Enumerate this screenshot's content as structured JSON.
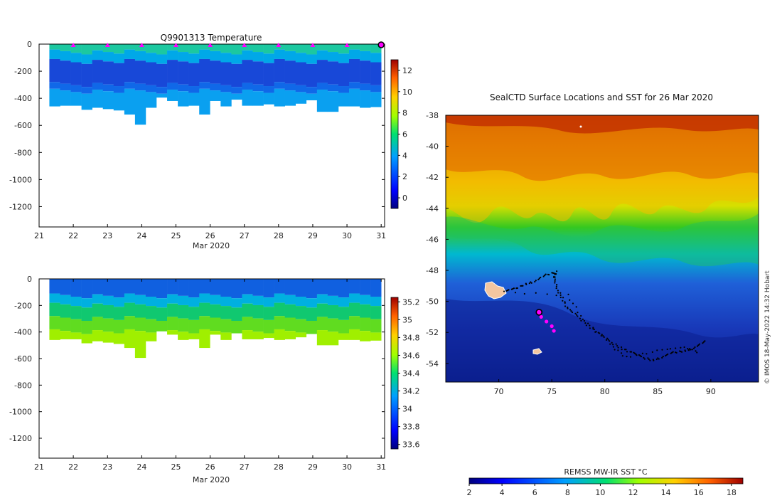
{
  "chart_data": [
    {
      "type": "heatmap",
      "title": "Q9901313  Temperature",
      "xlabel": "Mar 2020",
      "ylabel": "",
      "x_ticks": [
        "21",
        "22",
        "23",
        "24",
        "25",
        "26",
        "27",
        "28",
        "29",
        "30",
        "31"
      ],
      "y_ticks": [
        "0",
        "-200",
        "-400",
        "-600",
        "-800",
        "-1000",
        "-1200"
      ],
      "xlim": [
        21,
        31.1
      ],
      "ylim": [
        -1350,
        0
      ],
      "profile_start": 21.3,
      "profile_end": 31.0,
      "profile_depths": [
        460,
        455,
        455,
        485,
        470,
        480,
        490,
        520,
        595,
        470,
        395,
        420,
        460,
        455,
        520,
        420,
        460,
        410,
        455,
        455,
        445,
        460,
        455,
        440,
        415,
        500,
        500,
        460,
        460,
        470,
        465
      ],
      "surface_markers_x": [
        22,
        23,
        24,
        25,
        26,
        27,
        28,
        29,
        30
      ],
      "current_marker_x": 31.0,
      "colorbar": {
        "ticks": [
          "12",
          "10",
          "8",
          "6",
          "4",
          "2",
          "0"
        ],
        "min": -1,
        "max": 13
      }
    },
    {
      "type": "heatmap",
      "title": "",
      "xlabel": "Mar 2020",
      "ylabel": "",
      "x_ticks": [
        "21",
        "22",
        "23",
        "24",
        "25",
        "26",
        "27",
        "28",
        "29",
        "30",
        "31"
      ],
      "y_ticks": [
        "0",
        "-200",
        "-400",
        "-600",
        "-800",
        "-1000",
        "-1200"
      ],
      "xlim": [
        21,
        31.1
      ],
      "ylim": [
        -1350,
        0
      ],
      "colorbar": {
        "ticks": [
          "35.2",
          "35",
          "34.8",
          "34.6",
          "34.4",
          "34.2",
          "34",
          "33.8",
          "33.6"
        ],
        "min": 33.55,
        "max": 35.25
      }
    },
    {
      "type": "heatmap",
      "title": "SealCTD Surface Locations and SST for 26 Mar 2020",
      "xlabel": "",
      "ylabel": "",
      "x_ticks": [
        "70",
        "75",
        "80",
        "85",
        "90"
      ],
      "y_ticks": [
        "-38",
        "-40",
        "-42",
        "-44",
        "-46",
        "-48",
        "-50",
        "-52",
        "-54"
      ],
      "xlim": [
        65,
        94.5
      ],
      "ylim": [
        -55.2,
        -38
      ],
      "track_points": [
        [
          89.5,
          -52.6
        ],
        [
          88.5,
          -53.0
        ],
        [
          87.5,
          -53.2
        ],
        [
          86.5,
          -53.3
        ],
        [
          85.5,
          -53.6
        ],
        [
          84.5,
          -53.8
        ],
        [
          83.5,
          -53.6
        ],
        [
          82.5,
          -53.3
        ],
        [
          81.5,
          -53.0
        ],
        [
          80.5,
          -52.6
        ],
        [
          79.5,
          -52.1
        ],
        [
          78.5,
          -51.6
        ],
        [
          77.5,
          -51.0
        ],
        [
          76.5,
          -50.5
        ],
        [
          76.0,
          -49.8
        ],
        [
          75.5,
          -49.2
        ],
        [
          75.2,
          -48.5
        ],
        [
          75.4,
          -48.1
        ],
        [
          74.5,
          -48.3
        ],
        [
          73.5,
          -48.7
        ],
        [
          72.5,
          -48.9
        ],
        [
          71.5,
          -49.2
        ],
        [
          70.5,
          -49.4
        ],
        [
          76.5,
          -49.6
        ],
        [
          78.0,
          -51.2
        ],
        [
          80.5,
          -52.8
        ],
        [
          82.0,
          -53.6
        ],
        [
          85.0,
          -53.2
        ],
        [
          87.5,
          -53.0
        ],
        [
          89.0,
          -53.3
        ]
      ],
      "recent_points": [
        [
          74.0,
          -51.0
        ],
        [
          74.5,
          -51.3
        ],
        [
          75.0,
          -51.6
        ],
        [
          75.2,
          -51.9
        ]
      ],
      "current_point": [
        73.8,
        -50.7
      ],
      "colorbar": {
        "label": "REMSS MW-IR SST °C",
        "ticks": [
          "2",
          "4",
          "6",
          "8",
          "10",
          "12",
          "14",
          "16",
          "18"
        ],
        "min": 2,
        "max": 18.7
      }
    }
  ],
  "watermark": "© IMOS 18-May-2022 14:32 Hobart",
  "colors": {
    "magenta": "#ff00ff",
    "axis": "#000000"
  }
}
